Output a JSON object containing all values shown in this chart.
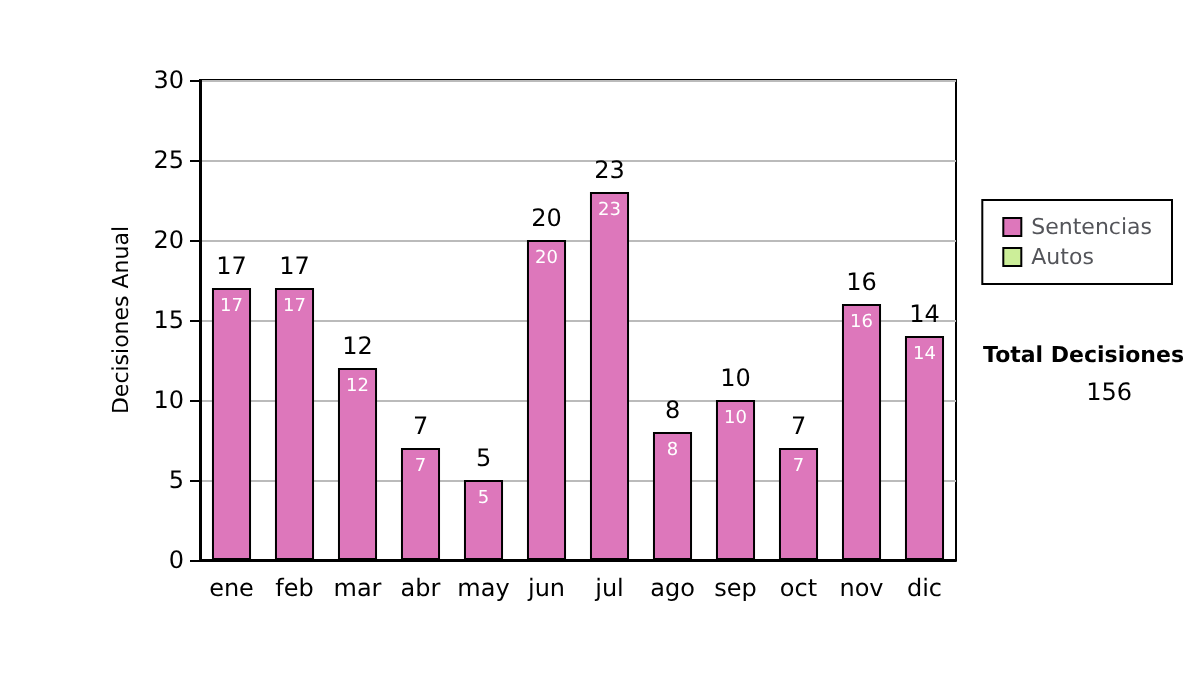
{
  "chart_data": {
    "type": "bar",
    "ylabel": "Decisiones Anual",
    "categories": [
      "ene",
      "feb",
      "mar",
      "abr",
      "may",
      "jun",
      "jul",
      "ago",
      "sep",
      "oct",
      "nov",
      "dic"
    ],
    "series": [
      {
        "name": "Sentencias",
        "color": "#dd77bb",
        "values": [
          17,
          17,
          12,
          7,
          5,
          20,
          23,
          8,
          10,
          7,
          16,
          14
        ],
        "value_labels": [
          "17",
          "17",
          "12",
          "7",
          "5",
          "20",
          "23",
          "8",
          "10",
          "7",
          "16",
          "14"
        ]
      },
      {
        "name": "Autos",
        "color": "#ccee99",
        "values": [
          0,
          0,
          0,
          0,
          0,
          0,
          0,
          0,
          0,
          0,
          0,
          0
        ]
      }
    ],
    "stacked": true,
    "totals": [
      "17",
      "17",
      "12",
      "7",
      "5",
      "20",
      "23",
      "8",
      "10",
      "7",
      "16",
      "14"
    ],
    "ylim": [
      0,
      30
    ],
    "yticks": [
      0,
      5,
      10,
      15,
      20,
      25,
      30
    ],
    "grid": "y",
    "legend": "right",
    "annotations": [
      "Total Decisiones",
      "156"
    ]
  }
}
